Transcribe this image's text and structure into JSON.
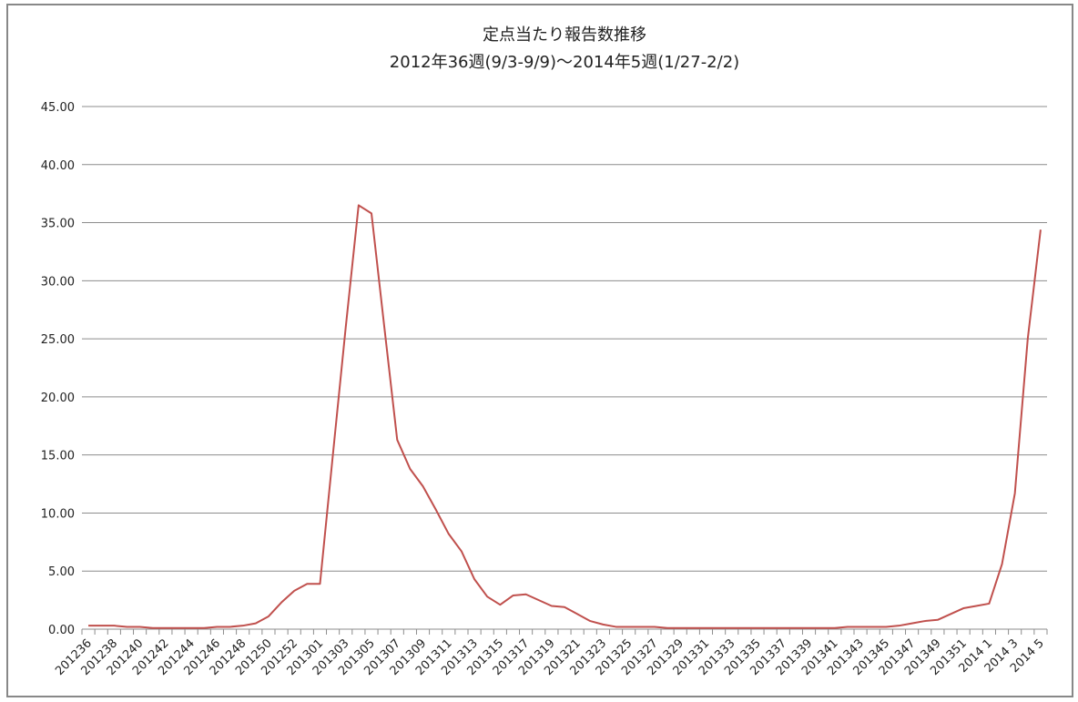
{
  "chart_data": {
    "type": "line",
    "title": "定点当たり報告数推移",
    "subtitle": "2012年36週(9/3-9/9)～2014年5週(1/27-2/2)",
    "categories": [
      "201236",
      null,
      "201238",
      null,
      "201240",
      null,
      "201242",
      null,
      "201244",
      null,
      "201246",
      null,
      "201248",
      null,
      "201250",
      null,
      "201252",
      null,
      "201301",
      null,
      "201303",
      null,
      "201305",
      null,
      "201307",
      null,
      "201309",
      null,
      "201311",
      null,
      "201313",
      null,
      "201315",
      null,
      "201317",
      null,
      "201319",
      null,
      "201321",
      null,
      "201323",
      null,
      "201325",
      null,
      "201327",
      null,
      "201329",
      null,
      "201331",
      null,
      "201333",
      null,
      "201335",
      null,
      "201337",
      null,
      "201339",
      null,
      "201341",
      null,
      "201343",
      null,
      "201345",
      null,
      "201347",
      null,
      "201349",
      null,
      "201351",
      null,
      "2014 1",
      null,
      "2014 3",
      null,
      "2014 5"
    ],
    "series": [
      {
        "name": "定点当たり報告数",
        "color": "#c0504d",
        "values": [
          0.3,
          0.3,
          0.3,
          0.2,
          0.2,
          0.1,
          0.1,
          0.1,
          0.1,
          0.1,
          0.2,
          0.2,
          0.3,
          0.5,
          1.1,
          2.3,
          3.3,
          3.9,
          3.9,
          15,
          26,
          36.5,
          35.8,
          26,
          16.3,
          13.8,
          12.3,
          10.3,
          8.2,
          6.7,
          4.3,
          2.8,
          2.1,
          2.9,
          3.0,
          2.5,
          2.0,
          1.9,
          1.3,
          0.7,
          0.4,
          0.2,
          0.2,
          0.2,
          0.2,
          0.1,
          0.1,
          0.1,
          0.1,
          0.1,
          0.1,
          0.1,
          0.1,
          0.1,
          0.1,
          0.1,
          0.1,
          0.1,
          0.1,
          0.2,
          0.2,
          0.2,
          0.2,
          0.3,
          0.5,
          0.7,
          0.8,
          1.3,
          1.8,
          2.0,
          2.2,
          5.6,
          11.7,
          25,
          34.4
        ]
      }
    ],
    "ylim": [
      0,
      45
    ],
    "yticks": [
      {
        "value": 0,
        "label": "0.00"
      },
      {
        "value": 5,
        "label": "5.00"
      },
      {
        "value": 10,
        "label": "10.00"
      },
      {
        "value": 15,
        "label": "15.00"
      },
      {
        "value": 20,
        "label": "20.00"
      },
      {
        "value": 25,
        "label": "25.00"
      },
      {
        "value": 30,
        "label": "30.00"
      },
      {
        "value": 35,
        "label": "35.00"
      },
      {
        "value": 40,
        "label": "40.00"
      },
      {
        "value": 45,
        "label": "45.00"
      }
    ],
    "grid": true
  }
}
